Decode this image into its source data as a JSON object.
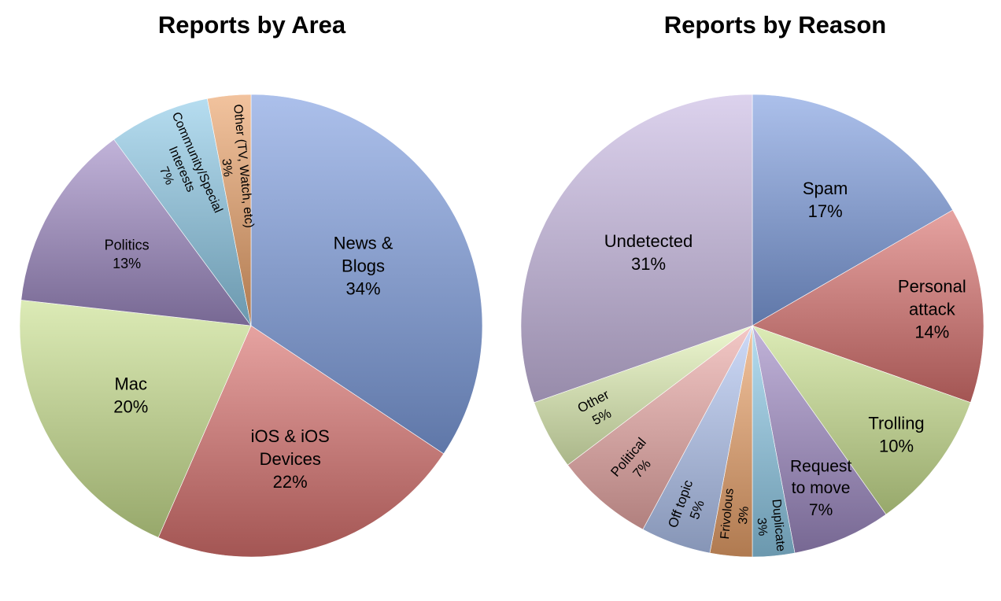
{
  "chart_data": [
    {
      "type": "pie",
      "title": "Reports by Area",
      "slices": [
        {
          "label": "News &\nBlogs",
          "percent": "34%",
          "value": 34,
          "color": "#7f9ee0"
        },
        {
          "label": "iOS & iOS\nDevices",
          "percent": "22%",
          "value": 22,
          "color": "#d9716e"
        },
        {
          "label": "Mac",
          "percent": "20%",
          "value": 20,
          "color": "#c9e08e"
        },
        {
          "label": "Politics",
          "percent": "13%",
          "value": 13,
          "color": "#9f8ac4"
        },
        {
          "label": "Community/Special\nInterests",
          "percent": "7%",
          "value": 7,
          "color": "#8fcbe8"
        },
        {
          "label": "Other  (TV, Watch, etc)",
          "percent": "3%",
          "value": 3,
          "color": "#eba26a"
        }
      ]
    },
    {
      "type": "pie",
      "title": "Reports by Reason",
      "slices": [
        {
          "label": "Spam",
          "percent": "17%",
          "value": 17,
          "color": "#7f9ee0"
        },
        {
          "label": "Personal\nattack",
          "percent": "14%",
          "value": 14,
          "color": "#d9716e"
        },
        {
          "label": "Trolling",
          "percent": "10%",
          "value": 10,
          "color": "#c9e08e"
        },
        {
          "label": "Request\nto move",
          "percent": "7%",
          "value": 7,
          "color": "#9f8ac4"
        },
        {
          "label": "Duplicate",
          "percent": "3%",
          "value": 3,
          "color": "#8fcbe8"
        },
        {
          "label": "Frivolous",
          "percent": "3%",
          "value": 3,
          "color": "#eba26a"
        },
        {
          "label": "Off topic",
          "percent": "5%",
          "value": 5,
          "color": "#b3c6f2"
        },
        {
          "label": "Political",
          "percent": "7%",
          "value": 7,
          "color": "#ecaaa8"
        },
        {
          "label": "Other",
          "percent": "5%",
          "value": 5,
          "color": "#e3f2b6"
        },
        {
          "label": "Undetected",
          "percent": "31%",
          "value": 31,
          "color": "#c9b9e3"
        }
      ]
    }
  ]
}
